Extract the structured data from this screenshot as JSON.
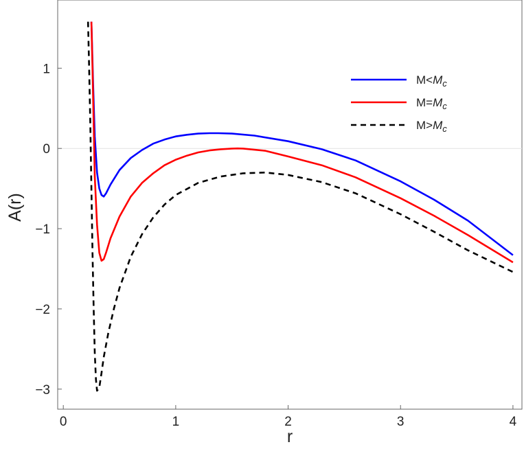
{
  "chart_data": {
    "type": "line",
    "xlabel": "r",
    "ylabel": "A(r)",
    "xlim": [
      -0.05,
      4.08
    ],
    "ylim": [
      -3.25,
      1.85
    ],
    "grid": false,
    "legend_position": "top-right",
    "x_ticks": [
      {
        "value": 0,
        "label": "0"
      },
      {
        "value": 1,
        "label": "1"
      },
      {
        "value": 2,
        "label": "2"
      },
      {
        "value": 3,
        "label": "3"
      },
      {
        "value": 4,
        "label": "4"
      }
    ],
    "y_ticks": [
      {
        "value": 1,
        "label": "1"
      },
      {
        "value": 0,
        "label": "0"
      },
      {
        "value": -1,
        "label": "−1"
      },
      {
        "value": -2,
        "label": "−2"
      },
      {
        "value": -3,
        "label": "−3"
      }
    ],
    "zero_line": true,
    "series": [
      {
        "name": "M<Mc",
        "legend_parts": [
          "M<",
          "M",
          "c"
        ],
        "color": "#0000ff",
        "dash": "solid",
        "x": [
          0.25,
          0.265,
          0.28,
          0.3,
          0.32,
          0.34,
          0.36,
          0.38,
          0.42,
          0.5,
          0.6,
          0.7,
          0.8,
          0.9,
          1.0,
          1.1,
          1.2,
          1.3,
          1.38,
          1.5,
          1.7,
          2.0,
          2.3,
          2.6,
          3.0,
          3.3,
          3.6,
          4.0
        ],
        "y": [
          1.58,
          0.8,
          0.15,
          -0.3,
          -0.5,
          -0.58,
          -0.6,
          -0.56,
          -0.45,
          -0.27,
          -0.12,
          -0.02,
          0.06,
          0.11,
          0.15,
          0.17,
          0.185,
          0.19,
          0.19,
          0.185,
          0.16,
          0.09,
          -0.01,
          -0.15,
          -0.41,
          -0.64,
          -0.9,
          -1.33
        ]
      },
      {
        "name": "M=Mc",
        "legend_parts": [
          "M=",
          "M",
          "c"
        ],
        "color": "#ff0000",
        "dash": "solid",
        "x": [
          0.25,
          0.26,
          0.27,
          0.28,
          0.3,
          0.32,
          0.34,
          0.36,
          0.38,
          0.42,
          0.5,
          0.6,
          0.7,
          0.8,
          0.9,
          1.0,
          1.1,
          1.2,
          1.3,
          1.4,
          1.5,
          1.55,
          1.6,
          1.8,
          2.0,
          2.3,
          2.6,
          3.0,
          3.3,
          3.6,
          4.0
        ],
        "y": [
          1.58,
          1.0,
          0.3,
          -0.35,
          -0.95,
          -1.3,
          -1.4,
          -1.38,
          -1.3,
          -1.12,
          -0.85,
          -0.6,
          -0.43,
          -0.31,
          -0.21,
          -0.14,
          -0.09,
          -0.05,
          -0.025,
          -0.01,
          -0.002,
          0.0,
          -0.002,
          -0.03,
          -0.1,
          -0.21,
          -0.36,
          -0.62,
          -0.84,
          -1.08,
          -1.42
        ]
      },
      {
        "name": "M>Mc",
        "legend_parts": [
          "M>",
          "M",
          "c"
        ],
        "color": "#000000",
        "dash": "dashed",
        "x": [
          0.22,
          0.23,
          0.24,
          0.25,
          0.26,
          0.27,
          0.28,
          0.29,
          0.3,
          0.32,
          0.34,
          0.36,
          0.4,
          0.45,
          0.5,
          0.6,
          0.7,
          0.8,
          0.9,
          1.0,
          1.2,
          1.4,
          1.6,
          1.8,
          2.0,
          2.3,
          2.6,
          3.0,
          3.3,
          3.6,
          4.0
        ],
        "y": [
          1.58,
          1.0,
          0.3,
          -0.5,
          -1.3,
          -2.0,
          -2.55,
          -2.88,
          -3.02,
          -2.98,
          -2.8,
          -2.6,
          -2.3,
          -2.0,
          -1.74,
          -1.35,
          -1.07,
          -0.86,
          -0.7,
          -0.58,
          -0.43,
          -0.35,
          -0.31,
          -0.3,
          -0.33,
          -0.42,
          -0.56,
          -0.82,
          -1.04,
          -1.27,
          -1.54
        ]
      }
    ]
  }
}
